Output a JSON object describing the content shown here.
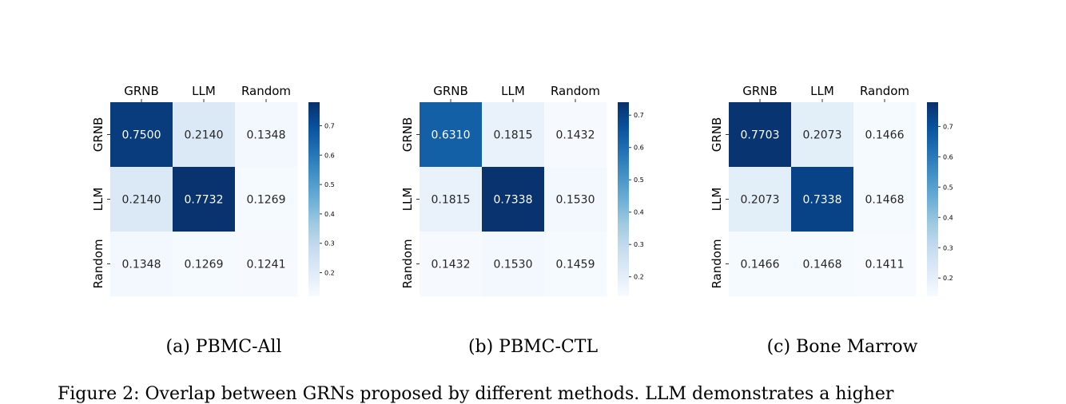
{
  "chart_data": [
    {
      "type": "heatmap",
      "rows": [
        "GRNB",
        "LLM",
        "Random"
      ],
      "cols": [
        "GRNB",
        "LLM",
        "Random"
      ],
      "values": [
        [
          0.75,
          0.214,
          0.1348
        ],
        [
          0.214,
          0.7732,
          0.1269
        ],
        [
          0.1348,
          0.1269,
          0.1241
        ]
      ],
      "cell_labels": [
        [
          "0.7500",
          "0.2140",
          "0.1348"
        ],
        [
          "0.2140",
          "0.7732",
          "0.1269"
        ],
        [
          "0.1348",
          "0.1269",
          "0.1241"
        ]
      ],
      "colorbar": {
        "min": 0.12,
        "max": 0.78,
        "ticks": [
          "0.2",
          "0.3",
          "0.4",
          "0.5",
          "0.6",
          "0.7"
        ],
        "tick_values": [
          0.2,
          0.3,
          0.4,
          0.5,
          0.6,
          0.7
        ]
      },
      "colormap": "Blues",
      "subcaption": "(a) PBMC-All"
    },
    {
      "type": "heatmap",
      "rows": [
        "GRNB",
        "LLM",
        "Random"
      ],
      "cols": [
        "GRNB",
        "LLM",
        "Random"
      ],
      "values": [
        [
          0.631,
          0.1815,
          0.1432
        ],
        [
          0.1815,
          0.7338,
          0.153
        ],
        [
          0.1432,
          0.153,
          0.1459
        ]
      ],
      "cell_labels": [
        [
          "0.6310",
          "0.1815",
          "0.1432"
        ],
        [
          "0.1815",
          "0.7338",
          "0.1530"
        ],
        [
          "0.1432",
          "0.1530",
          "0.1459"
        ]
      ],
      "colorbar": {
        "min": 0.14,
        "max": 0.74,
        "ticks": [
          "0.2",
          "0.3",
          "0.4",
          "0.5",
          "0.6",
          "0.7"
        ],
        "tick_values": [
          0.2,
          0.3,
          0.4,
          0.5,
          0.6,
          0.7
        ]
      },
      "colormap": "Blues",
      "subcaption": "(b) PBMC-CTL"
    },
    {
      "type": "heatmap",
      "rows": [
        "GRNB",
        "LLM",
        "Random"
      ],
      "cols": [
        "GRNB",
        "LLM",
        "Random"
      ],
      "values": [
        [
          0.7703,
          0.2073,
          0.1466
        ],
        [
          0.2073,
          0.7338,
          0.1468
        ],
        [
          0.1466,
          0.1468,
          0.1411
        ]
      ],
      "cell_labels": [
        [
          "0.7703",
          "0.2073",
          "0.1466"
        ],
        [
          "0.2073",
          "0.7338",
          "0.1468"
        ],
        [
          "0.1466",
          "0.1468",
          "0.1411"
        ]
      ],
      "colorbar": {
        "min": 0.14,
        "max": 0.78,
        "ticks": [
          "0.2",
          "0.3",
          "0.4",
          "0.5",
          "0.6",
          "0.7"
        ],
        "tick_values": [
          0.2,
          0.3,
          0.4,
          0.5,
          0.6,
          0.7
        ]
      },
      "colormap": "Blues",
      "subcaption": "(c) Bone Marrow"
    }
  ],
  "caption": "Figure 2: Overlap between GRNs proposed by different methods. LLM demonstrates a higher"
}
